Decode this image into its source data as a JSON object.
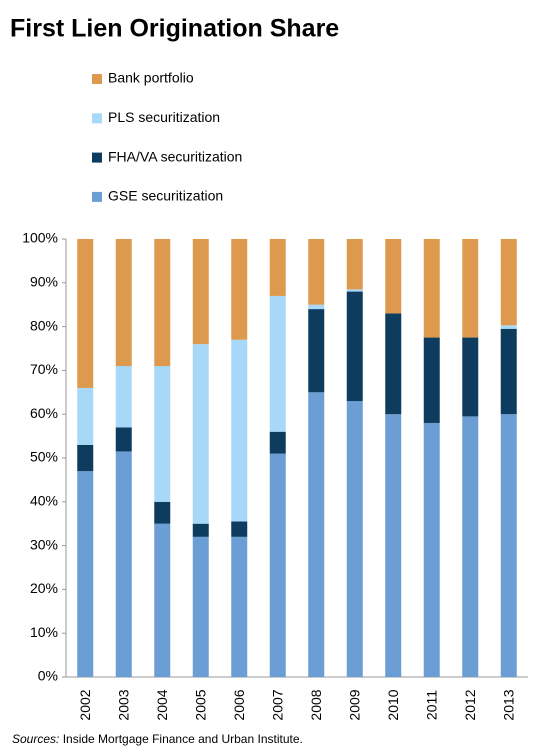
{
  "chart_data": {
    "type": "stacked_bar",
    "title": "First Lien Origination Share",
    "source_label": "Sources:",
    "source": "Inside Mortgage Finance and Urban Institute.",
    "categories": [
      "2002",
      "2003",
      "2004",
      "2005",
      "2006",
      "2007",
      "2008",
      "2009",
      "2010",
      "2011",
      "2012",
      "2013"
    ],
    "series": [
      {
        "name": "GSE securitization",
        "color": "#6a9ed4",
        "values": [
          47,
          51.5,
          35,
          32,
          32,
          51,
          65,
          63,
          60,
          58,
          59.5,
          60
        ]
      },
      {
        "name": "FHA/VA securitization",
        "color": "#0e3c5e",
        "values": [
          6,
          5.5,
          5,
          3,
          3.5,
          5,
          19,
          25,
          23,
          19.5,
          18,
          19.5
        ]
      },
      {
        "name": "PLS securitization",
        "color": "#a8d8f8",
        "values": [
          13,
          14,
          31,
          41,
          41.5,
          31,
          1,
          0.5,
          0,
          0,
          0,
          0.8
        ]
      },
      {
        "name": "Bank portfolio",
        "color": "#dd9a4f",
        "values": [
          34,
          29,
          29,
          24,
          23,
          13,
          15,
          11.5,
          17,
          22.5,
          22.5,
          19.7
        ]
      }
    ],
    "ylim": [
      0,
      100
    ],
    "yticks": [
      {
        "value": 0,
        "label": "0%"
      },
      {
        "value": 10,
        "label": "10%"
      },
      {
        "value": 20,
        "label": "20%"
      },
      {
        "value": 30,
        "label": "30%"
      },
      {
        "value": 40,
        "label": "40%"
      },
      {
        "value": 50,
        "label": "50%"
      },
      {
        "value": 60,
        "label": "60%"
      },
      {
        "value": 70,
        "label": "70%"
      },
      {
        "value": 80,
        "label": "80%"
      },
      {
        "value": 90,
        "label": "90%"
      },
      {
        "value": 100,
        "label": "100%"
      }
    ],
    "grid": false
  }
}
